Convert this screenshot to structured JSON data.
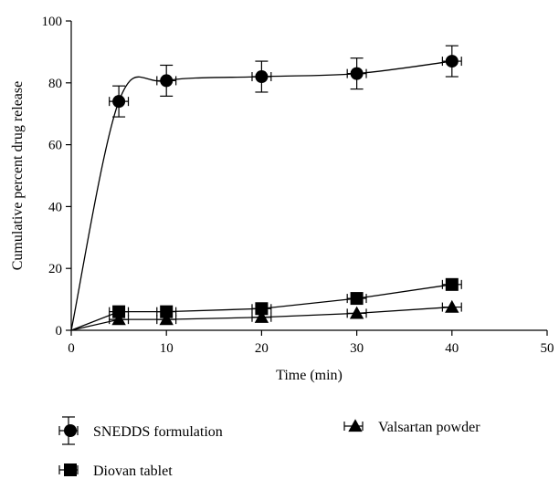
{
  "chart_data": {
    "type": "line",
    "xlabel": "Time (min)",
    "ylabel": "Cumulative percent drug release",
    "xlim": [
      0,
      50
    ],
    "ylim": [
      0,
      100
    ],
    "x_ticks": [
      0,
      10,
      20,
      30,
      40,
      50
    ],
    "y_ticks": [
      0,
      20,
      40,
      60,
      80,
      100
    ],
    "grid": false,
    "legend_position": "bottom",
    "error_bars": true,
    "series": [
      {
        "name": "SNEDDS formulation",
        "marker": "circle",
        "color": "#000000",
        "points": [
          {
            "x": 0,
            "y": 0,
            "yerr": 0,
            "xerr": 0
          },
          {
            "x": 5,
            "y": 74,
            "yerr": 5,
            "xerr": 1
          },
          {
            "x": 10,
            "y": 80.7,
            "yerr": 5,
            "xerr": 1
          },
          {
            "x": 20,
            "y": 82,
            "yerr": 5,
            "xerr": 1
          },
          {
            "x": 30,
            "y": 83,
            "yerr": 5,
            "xerr": 1
          },
          {
            "x": 40,
            "y": 87,
            "yerr": 5,
            "xerr": 1
          }
        ]
      },
      {
        "name": "Diovan tablet",
        "marker": "square",
        "color": "#000000",
        "points": [
          {
            "x": 0,
            "y": 0,
            "yerr": 0,
            "xerr": 0
          },
          {
            "x": 5,
            "y": 6,
            "yerr": 0,
            "xerr": 1
          },
          {
            "x": 10,
            "y": 6,
            "yerr": 0,
            "xerr": 1
          },
          {
            "x": 20,
            "y": 7,
            "yerr": 0,
            "xerr": 1
          },
          {
            "x": 30,
            "y": 10.3,
            "yerr": 0,
            "xerr": 1
          },
          {
            "x": 40,
            "y": 14.8,
            "yerr": 0,
            "xerr": 1
          }
        ]
      },
      {
        "name": "Valsartan powder",
        "marker": "triangle",
        "color": "#000000",
        "points": [
          {
            "x": 0,
            "y": 0,
            "yerr": 0,
            "xerr": 0
          },
          {
            "x": 5,
            "y": 3.5,
            "yerr": 0,
            "xerr": 1
          },
          {
            "x": 10,
            "y": 3.5,
            "yerr": 0,
            "xerr": 1
          },
          {
            "x": 20,
            "y": 4.2,
            "yerr": 0,
            "xerr": 1
          },
          {
            "x": 30,
            "y": 5.5,
            "yerr": 0,
            "xerr": 1
          },
          {
            "x": 40,
            "y": 7.5,
            "yerr": 0,
            "xerr": 1
          }
        ]
      }
    ]
  }
}
